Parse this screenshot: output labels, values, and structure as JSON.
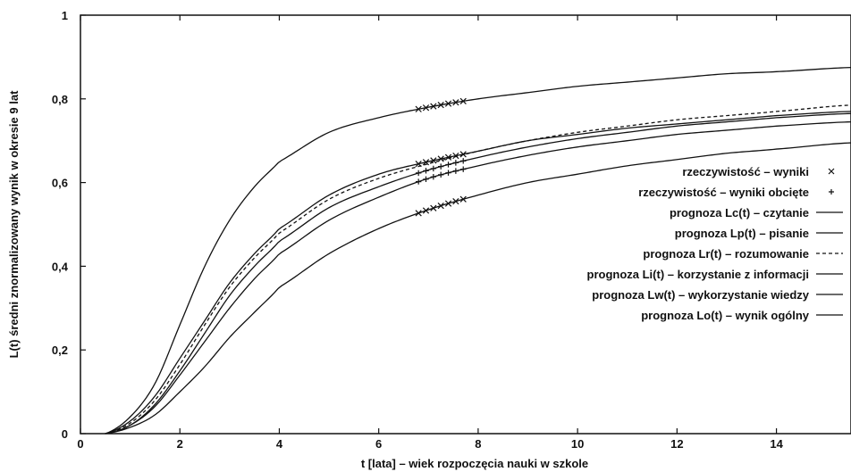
{
  "chart_data": {
    "type": "line",
    "title": "",
    "xlabel": "t [lata] – wiek rozpoczęcia nauki w szkole",
    "ylabel": "L(t) średni znormalizowany wynik w okresie 9 lat",
    "xlim": [
      0,
      15.5
    ],
    "ylim": [
      0,
      1
    ],
    "x_ticks": [
      0,
      2,
      4,
      6,
      8,
      10,
      12,
      14
    ],
    "x_tick_labels": [
      "0",
      "2",
      "4",
      "6",
      "8",
      "10",
      "12",
      "14"
    ],
    "y_ticks": [
      0,
      0.2,
      0.4,
      0.6,
      0.8,
      1
    ],
    "y_tick_labels": [
      "0",
      "0,2",
      "0,4",
      "0,6",
      "0,8",
      "1"
    ],
    "legend_position": "right",
    "legend": [
      {
        "label": "rzeczywistość – wyniki",
        "marker": "×"
      },
      {
        "label": "rzeczywistość – wyniki obcięte",
        "marker": "+"
      },
      {
        "label": "prognoza Lc(t) – czytanie",
        "marker": "—"
      },
      {
        "label": "prognoza Lp(t) – pisanie",
        "marker": "—"
      },
      {
        "label": "prognoza Lr(t) – rozumowanie",
        "marker": "- - -"
      },
      {
        "label": "prognoza Li(t) – korzystanie z informacji",
        "marker": "—"
      },
      {
        "label": "prognoza Lw(t) – wykorzystanie wiedzy",
        "marker": "—"
      },
      {
        "label": "prognoza Lo(t) – wynik ogólny",
        "marker": "—"
      }
    ],
    "series": [
      {
        "name": "prognoza Lc(t) – czytanie",
        "style": "solid",
        "x": [
          0.5,
          1,
          1.5,
          2,
          2.5,
          3,
          3.5,
          4,
          5,
          6,
          7,
          8,
          9,
          10,
          11,
          12,
          13,
          14,
          15.5
        ],
        "y": [
          0,
          0.04,
          0.12,
          0.26,
          0.4,
          0.51,
          0.59,
          0.65,
          0.72,
          0.755,
          0.78,
          0.8,
          0.815,
          0.83,
          0.84,
          0.85,
          0.86,
          0.865,
          0.875
        ]
      },
      {
        "name": "prognoza Lp(t) – pisanie",
        "style": "solid",
        "x": [
          0.5,
          1,
          1.5,
          2,
          2.5,
          3,
          3.5,
          4,
          5,
          6,
          7,
          8,
          9,
          10,
          11,
          12,
          13,
          14,
          15.5
        ],
        "y": [
          0,
          0.03,
          0.09,
          0.18,
          0.27,
          0.36,
          0.43,
          0.49,
          0.57,
          0.62,
          0.65,
          0.675,
          0.7,
          0.715,
          0.73,
          0.74,
          0.75,
          0.76,
          0.77
        ]
      },
      {
        "name": "prognoza Lr(t) – rozumowanie",
        "style": "dashed",
        "x": [
          0.5,
          1,
          1.5,
          2,
          2.5,
          3,
          3.5,
          4,
          5,
          6,
          7,
          8,
          9,
          10,
          11,
          12,
          13,
          14,
          15.5
        ],
        "y": [
          0,
          0.025,
          0.08,
          0.165,
          0.26,
          0.35,
          0.42,
          0.48,
          0.56,
          0.61,
          0.645,
          0.675,
          0.7,
          0.72,
          0.735,
          0.75,
          0.76,
          0.77,
          0.785
        ]
      },
      {
        "name": "prognoza Li(t) – korzystanie z informacji",
        "style": "solid",
        "x": [
          0.5,
          1,
          1.5,
          2,
          2.5,
          3,
          3.5,
          4,
          5,
          6,
          7,
          8,
          9,
          10,
          11,
          12,
          13,
          14,
          15.5
        ],
        "y": [
          0,
          0.02,
          0.07,
          0.15,
          0.24,
          0.33,
          0.4,
          0.46,
          0.54,
          0.59,
          0.63,
          0.66,
          0.685,
          0.705,
          0.72,
          0.735,
          0.745,
          0.755,
          0.765
        ]
      },
      {
        "name": "prognoza Lw(t) – wykorzystanie wiedzy",
        "style": "solid",
        "x": [
          0.5,
          1,
          1.5,
          2,
          2.5,
          3,
          3.5,
          4,
          5,
          6,
          7,
          8,
          9,
          10,
          11,
          12,
          13,
          14,
          15.5
        ],
        "y": [
          0,
          0.02,
          0.065,
          0.14,
          0.22,
          0.3,
          0.37,
          0.43,
          0.51,
          0.565,
          0.61,
          0.64,
          0.665,
          0.685,
          0.7,
          0.715,
          0.725,
          0.735,
          0.745
        ]
      },
      {
        "name": "prognoza Lo(t) – wynik ogólny",
        "style": "solid",
        "x": [
          0.5,
          1,
          1.5,
          2,
          2.5,
          3,
          3.5,
          4,
          5,
          6,
          7,
          8,
          9,
          10,
          11,
          12,
          13,
          14,
          15.5
        ],
        "y": [
          0,
          0.015,
          0.045,
          0.1,
          0.16,
          0.23,
          0.29,
          0.35,
          0.43,
          0.49,
          0.535,
          0.57,
          0.6,
          0.62,
          0.64,
          0.655,
          0.67,
          0.68,
          0.695
        ]
      }
    ],
    "markers": [
      {
        "name": "rzeczywistość – wyniki",
        "symbol": "×",
        "x": [
          6.8,
          6.95,
          7.1,
          7.25,
          7.4,
          7.55,
          7.7
        ],
        "y_series_index": [
          0,
          0,
          0,
          0,
          0,
          0,
          0
        ]
      },
      {
        "name": "rzeczywistość – wyniki",
        "symbol": "×",
        "x": [
          6.8,
          6.95,
          7.1,
          7.25,
          7.4,
          7.55,
          7.7
        ],
        "y_series_index": [
          1,
          1,
          1,
          1,
          1,
          1,
          1
        ]
      },
      {
        "name": "rzeczywistość – wyniki obcięte",
        "symbol": "+",
        "x": [
          6.8,
          6.95,
          7.1,
          7.25,
          7.4,
          7.55,
          7.7
        ],
        "y_series_index": [
          3,
          3,
          3,
          3,
          3,
          3,
          3
        ]
      },
      {
        "name": "rzeczywistość – wyniki obcięte",
        "symbol": "+",
        "x": [
          6.8,
          6.95,
          7.1,
          7.25,
          7.4,
          7.55,
          7.7
        ],
        "y_series_index": [
          4,
          4,
          4,
          4,
          4,
          4,
          4
        ]
      },
      {
        "name": "rzeczywistość – wyniki",
        "symbol": "×",
        "x": [
          6.8,
          6.95,
          7.1,
          7.25,
          7.4,
          7.55,
          7.7
        ],
        "y_series_index": [
          5,
          5,
          5,
          5,
          5,
          5,
          5
        ]
      }
    ]
  }
}
